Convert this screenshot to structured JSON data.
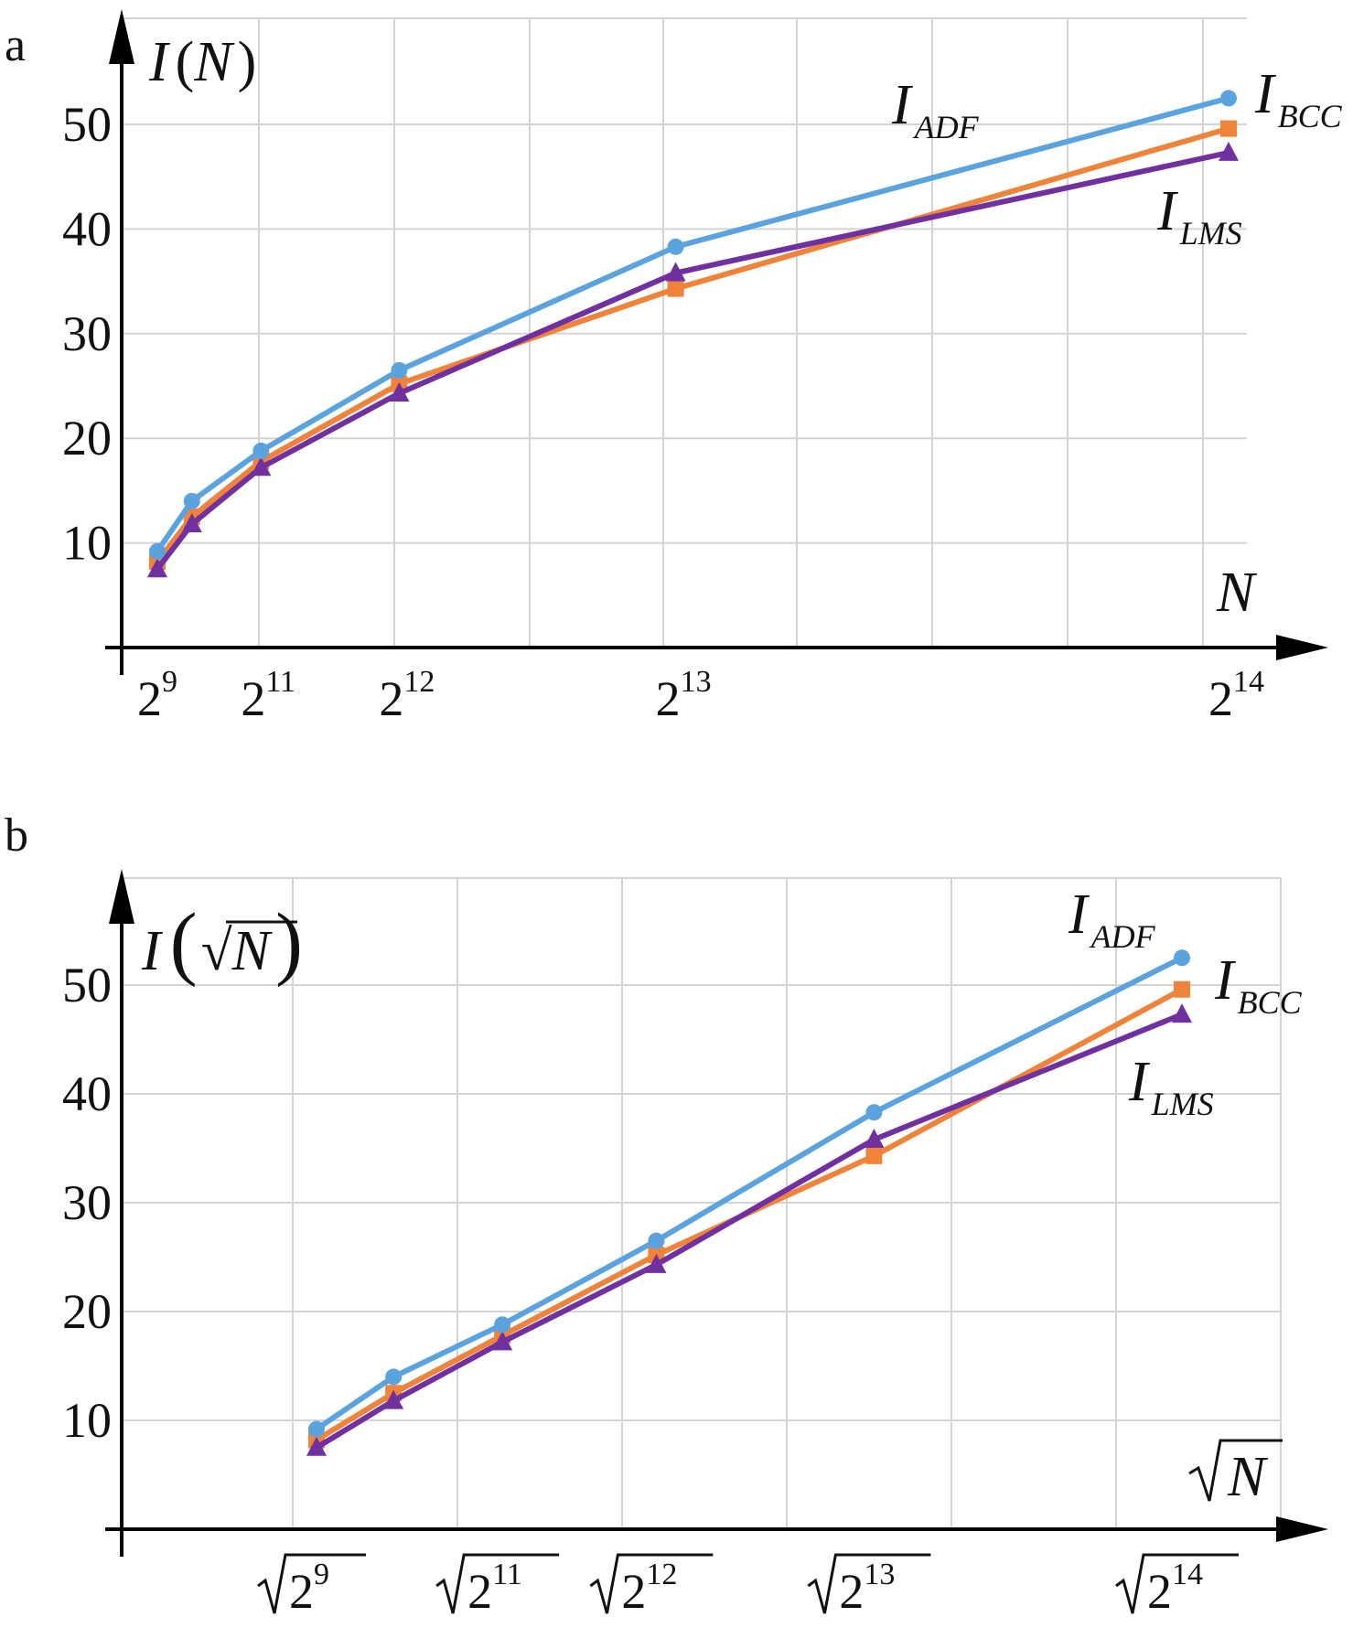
{
  "colors": {
    "adf": "#5ba3de",
    "bcc": "#f0833a",
    "lms": "#7030a0",
    "grid": "#d4d4d4",
    "axis": "#000000"
  },
  "chart_data": [
    {
      "panel_label": "a",
      "type": "line",
      "ylabel": "I(N)",
      "xlabel": "N",
      "x_scale": "linear",
      "x": [
        512,
        1024,
        2048,
        4096,
        8192,
        16384
      ],
      "x_ticks": [
        {
          "value": 512,
          "base": "2",
          "exp": "9"
        },
        {
          "value": 2048,
          "base": "2",
          "exp": "11"
        },
        {
          "value": 4096,
          "base": "2",
          "exp": "12"
        },
        {
          "value": 8192,
          "base": "2",
          "exp": "13"
        },
        {
          "value": 16384,
          "base": "2",
          "exp": "14"
        }
      ],
      "y_ticks": [
        "10",
        "20",
        "30",
        "40",
        "50"
      ],
      "ylim": [
        0,
        60
      ],
      "grid": true,
      "series": [
        {
          "key": "adf",
          "name_main": "I",
          "name_sub": "ADF",
          "marker": "circle",
          "values": [
            9.2,
            14.0,
            18.8,
            26.5,
            38.3,
            52.5
          ]
        },
        {
          "key": "bcc",
          "name_main": "I",
          "name_sub": "BCC",
          "marker": "square",
          "values": [
            8.2,
            12.5,
            17.8,
            25.2,
            34.3,
            49.6
          ]
        },
        {
          "key": "lms",
          "name_main": "I",
          "name_sub": "LMS",
          "marker": "triangle",
          "values": [
            7.5,
            11.8,
            17.2,
            24.3,
            35.8,
            47.3
          ]
        }
      ]
    },
    {
      "panel_label": "b",
      "type": "line",
      "ylabel": "I(√N)",
      "xlabel": "√N",
      "x_scale": "sqrt",
      "x": [
        512,
        1024,
        2048,
        4096,
        8192,
        16384
      ],
      "x_ticks": [
        {
          "value": 512,
          "base": "2",
          "exp": "9"
        },
        {
          "value": 2048,
          "base": "2",
          "exp": "11"
        },
        {
          "value": 4096,
          "base": "2",
          "exp": "12"
        },
        {
          "value": 8192,
          "base": "2",
          "exp": "13"
        },
        {
          "value": 16384,
          "base": "2",
          "exp": "14"
        }
      ],
      "y_ticks": [
        "10",
        "20",
        "30",
        "40",
        "50"
      ],
      "ylim": [
        0,
        60
      ],
      "grid": true,
      "series": [
        {
          "key": "adf",
          "name_main": "I",
          "name_sub": "ADF",
          "marker": "circle",
          "values": [
            9.2,
            14.0,
            18.8,
            26.5,
            38.3,
            52.5
          ]
        },
        {
          "key": "bcc",
          "name_main": "I",
          "name_sub": "BCC",
          "marker": "square",
          "values": [
            8.2,
            12.5,
            17.8,
            25.2,
            34.3,
            49.6
          ]
        },
        {
          "key": "lms",
          "name_main": "I",
          "name_sub": "LMS",
          "marker": "triangle",
          "values": [
            7.5,
            11.8,
            17.2,
            24.3,
            35.8,
            47.3
          ]
        }
      ]
    }
  ]
}
